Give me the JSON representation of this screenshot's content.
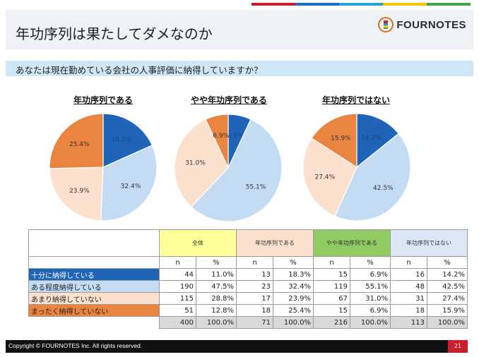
{
  "title": "年功序列は果たしてダメなのか",
  "brand": "FOURNOTES",
  "question": "あなたは現在勤めている会社の人事評価に納得していますか？",
  "colors": {
    "very": "#1f64b6",
    "somewhat": "#c3dcf4",
    "not_much": "#fbe0cd",
    "not_at_all": "#ea8441",
    "topbar": [
      "#c7202c",
      "#1e6fbf",
      "#2aa3dc",
      "#f2c500",
      "#3fa745"
    ],
    "group_all": "#ffff99",
    "group_1": "#fbe0cd",
    "group_2": "#8fca63",
    "group_3": "#dbe7f4"
  },
  "chart_data": [
    {
      "type": "pie",
      "title": "年功序列である",
      "categories": [
        "十分に納得している",
        "ある程度納得している",
        "あまり納得していない",
        "まったく納得していない"
      ],
      "values": [
        18.3,
        32.4,
        23.9,
        25.4
      ],
      "labels": [
        "18.3%",
        "32.4%",
        "23.9%",
        "25.4%"
      ]
    },
    {
      "type": "pie",
      "title": "やや年功序列である",
      "categories": [
        "十分に納得している",
        "ある程度納得している",
        "あまり納得していない",
        "まったく納得していない"
      ],
      "values": [
        6.9,
        55.1,
        31.0,
        6.9
      ],
      "labels": [
        "6.9%",
        "55.1%",
        "31.0%",
        "6.9%"
      ]
    },
    {
      "type": "pie",
      "title": "年功序列ではない",
      "categories": [
        "十分に納得している",
        "ある程度納得している",
        "あまり納得していない",
        "まったく納得していない"
      ],
      "values": [
        14.2,
        42.5,
        27.4,
        15.9
      ],
      "labels": [
        "14.2%",
        "42.5%",
        "27.4%",
        "15.9%"
      ]
    }
  ],
  "table": {
    "groups": [
      "全体",
      "年功序列である",
      "やや年功序列である",
      "年功序列ではない"
    ],
    "sub": [
      "n",
      "%"
    ],
    "rows": [
      {
        "label": "十分に納得している",
        "cells": [
          "44",
          "11.0%",
          "13",
          "18.3%",
          "15",
          "6.9%",
          "16",
          "14.2%"
        ]
      },
      {
        "label": "ある程度納得している",
        "cells": [
          "190",
          "47.5%",
          "23",
          "32.4%",
          "119",
          "55.1%",
          "48",
          "42.5%"
        ]
      },
      {
        "label": "あまり納得していない",
        "cells": [
          "115",
          "28.8%",
          "17",
          "23.9%",
          "67",
          "31.0%",
          "31",
          "27.4%"
        ]
      },
      {
        "label": "まったく納得していない",
        "cells": [
          "51",
          "12.8%",
          "18",
          "25.4%",
          "15",
          "6.9%",
          "18",
          "15.9%"
        ]
      }
    ],
    "totals": [
      "400",
      "100.0%",
      "71",
      "100.0%",
      "216",
      "100.0%",
      "113",
      "100.0%"
    ]
  },
  "footer": {
    "copyright": "Copyright © FOURNOTES Inc. All rights reserved.",
    "page": "21"
  }
}
